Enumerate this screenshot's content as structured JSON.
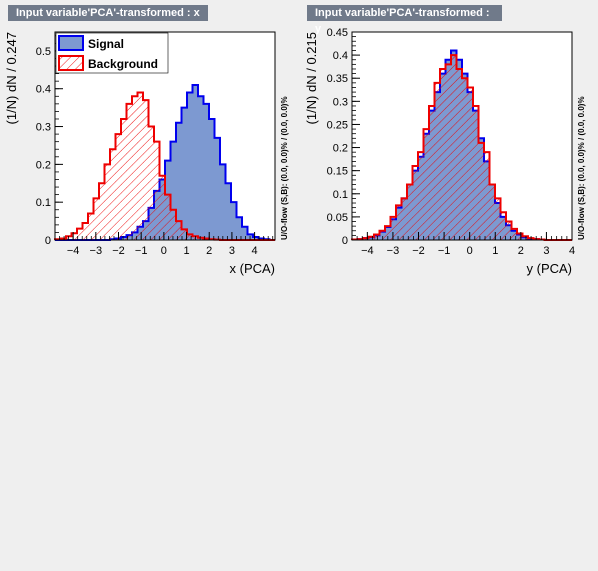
{
  "chart_data": [
    {
      "type": "bar",
      "title": "Input variable'PCA'-transformed : x",
      "xlabel": "x (PCA)",
      "ylabel": "(1/N) dN / 0.247",
      "side_label": "U/O-flow (S,B): (0.0, 0.0)% / (0.0, 0.0)%",
      "xlim": [
        -4.8,
        4.9
      ],
      "ylim": [
        0,
        0.55
      ],
      "x_ticks": [
        "-4",
        "-3",
        "-2",
        "-1",
        "0",
        "1",
        "2",
        "3",
        "4"
      ],
      "y_ticks": [
        "0",
        "0.1",
        "0.2",
        "0.3",
        "0.4",
        "0.5"
      ],
      "legend_placement": "top-left",
      "series": [
        {
          "name": "Signal",
          "color": "#0000ee",
          "fill": "#7d99d1",
          "values": [
            0,
            0,
            0,
            0,
            0,
            0,
            0,
            0,
            0,
            0,
            0.002,
            0.004,
            0.008,
            0.013,
            0.02,
            0.035,
            0.05,
            0.085,
            0.13,
            0.16,
            0.21,
            0.26,
            0.31,
            0.35,
            0.39,
            0.41,
            0.38,
            0.36,
            0.32,
            0.27,
            0.2,
            0.15,
            0.1,
            0.06,
            0.035,
            0.015,
            0.008,
            0.004,
            0.002,
            0
          ]
        },
        {
          "name": "Background",
          "color": "#ee0000",
          "fill": "hatch",
          "values": [
            0.002,
            0.004,
            0.01,
            0.018,
            0.03,
            0.045,
            0.07,
            0.11,
            0.15,
            0.2,
            0.24,
            0.28,
            0.32,
            0.36,
            0.38,
            0.39,
            0.37,
            0.3,
            0.26,
            0.17,
            0.12,
            0.08,
            0.05,
            0.028,
            0.015,
            0.01,
            0.006,
            0.004,
            0.002,
            0.001,
            0,
            0,
            0,
            0,
            0,
            0,
            0,
            0,
            0,
            0
          ]
        }
      ]
    },
    {
      "type": "bar",
      "title": "Input variable'PCA'-transformed : y",
      "xlabel": "y (PCA)",
      "ylabel": "(1/N) dN / 0.215",
      "side_label": "U/O-flow (S,B): (0.0, 0.0)% / (0.0, 0.0)%",
      "xlim": [
        -4.6,
        4.0
      ],
      "ylim": [
        0,
        0.45
      ],
      "x_ticks": [
        "-4",
        "-3",
        "-2",
        "-1",
        "0",
        "1",
        "2",
        "3",
        "4"
      ],
      "y_ticks": [
        "0",
        "0.05",
        "0.1",
        "0.15",
        "0.2",
        "0.25",
        "0.3",
        "0.35",
        "0.4",
        "0.45"
      ],
      "series": [
        {
          "name": "Signal",
          "color": "#0000ee",
          "fill": "#7d99d1",
          "values": [
            0.001,
            0.002,
            0.004,
            0.006,
            0.01,
            0.018,
            0.028,
            0.045,
            0.07,
            0.09,
            0.12,
            0.15,
            0.18,
            0.23,
            0.28,
            0.32,
            0.36,
            0.39,
            0.41,
            0.39,
            0.36,
            0.32,
            0.28,
            0.22,
            0.17,
            0.12,
            0.08,
            0.05,
            0.032,
            0.02,
            0.012,
            0.006,
            0.003,
            0.002,
            0.001,
            0,
            0,
            0,
            0,
            0
          ]
        },
        {
          "name": "Background",
          "color": "#ee0000",
          "fill": "hatch",
          "values": [
            0.001,
            0.002,
            0.004,
            0.007,
            0.012,
            0.02,
            0.03,
            0.05,
            0.075,
            0.09,
            0.12,
            0.16,
            0.19,
            0.24,
            0.29,
            0.34,
            0.37,
            0.38,
            0.4,
            0.37,
            0.35,
            0.33,
            0.29,
            0.21,
            0.19,
            0.12,
            0.09,
            0.06,
            0.04,
            0.024,
            0.014,
            0.008,
            0.004,
            0.002,
            0.001,
            0,
            0,
            0,
            0,
            0
          ]
        }
      ]
    }
  ]
}
